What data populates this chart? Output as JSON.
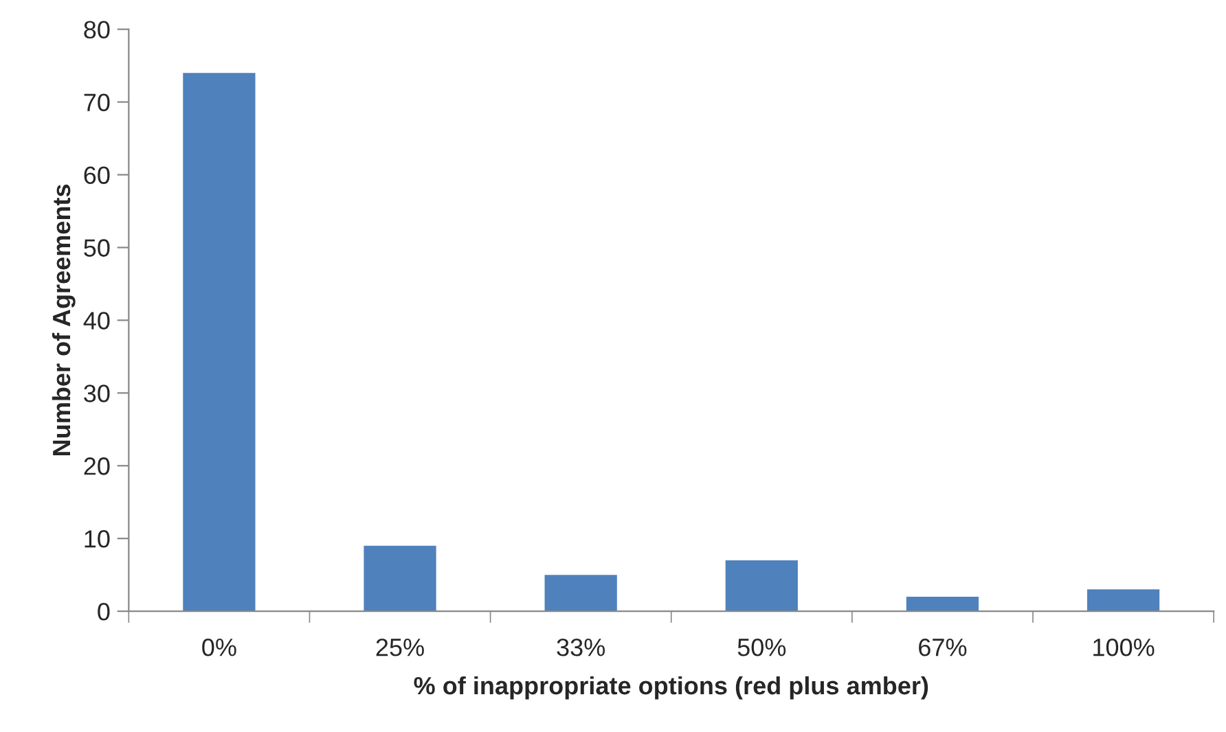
{
  "chart_data": {
    "type": "bar",
    "xlabel": "% of inappropriate options (red plus amber)",
    "ylabel": "Number of Agreements",
    "categories": [
      "0%",
      "25%",
      "33%",
      "50%",
      "67%",
      "100%"
    ],
    "values": [
      74,
      9,
      5,
      7,
      2,
      3
    ],
    "color": "#4f81bd",
    "ylim": [
      0,
      80
    ],
    "yticks": [
      0,
      10,
      20,
      30,
      40,
      50,
      60,
      70,
      80
    ],
    "grid": false,
    "legend": false
  }
}
